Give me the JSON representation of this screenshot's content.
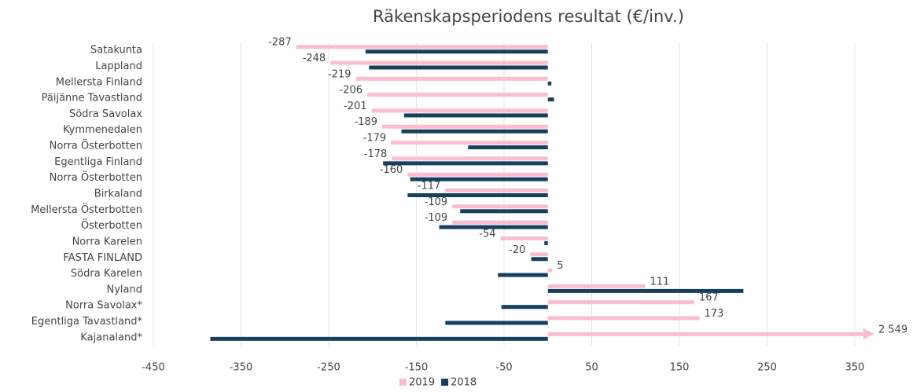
{
  "chart_data": {
    "type": "hbar",
    "title": "Räkenskapsperiodens resultat (€/inv.)",
    "categories": [
      "Satakunta",
      "Lappland",
      "Mellersta Finland",
      "Päijänne Tavastland",
      "Södra Savolax",
      "Kymmenedalen",
      "Norra Österbotten",
      "Egentliga Finland",
      "Norra Österbotten",
      "Birkaland",
      "Mellersta Österbotten",
      "Österbotten",
      "Norra Karelen",
      "FASTA FINLAND",
      "Södra Karelen",
      "Nyland",
      "Norra Savolax*",
      "Egentliga Tavastland*",
      "Kajanaland*"
    ],
    "series": [
      {
        "name": "2019",
        "color": "#f9bfd0",
        "values": [
          -287,
          -248,
          -219,
          -206,
          -201,
          -189,
          -179,
          -178,
          -160,
          -117,
          -109,
          -109,
          -54,
          -20,
          5,
          111,
          167,
          173,
          2549
        ],
        "value_labels": [
          "-287",
          "-248",
          "-219",
          "-206",
          "-201",
          "-189",
          "-179",
          "-178",
          "-160",
          "-117",
          "-109",
          "-109",
          "-54",
          "-20",
          "5",
          "111",
          "167",
          "173",
          "2 549"
        ]
      },
      {
        "name": "2018",
        "color": "#17405f",
        "values": [
          -208,
          -204,
          4,
          7,
          -164,
          -167,
          -91,
          -188,
          -157,
          -160,
          -100,
          -124,
          -4,
          -19,
          -57,
          223,
          -53,
          -117,
          -385
        ]
      }
    ],
    "xlim": [
      -450,
      370
    ],
    "xticks": [
      -450,
      -350,
      -250,
      -150,
      -50,
      50,
      150,
      250,
      350
    ],
    "grid": true,
    "legend": "bottom"
  }
}
